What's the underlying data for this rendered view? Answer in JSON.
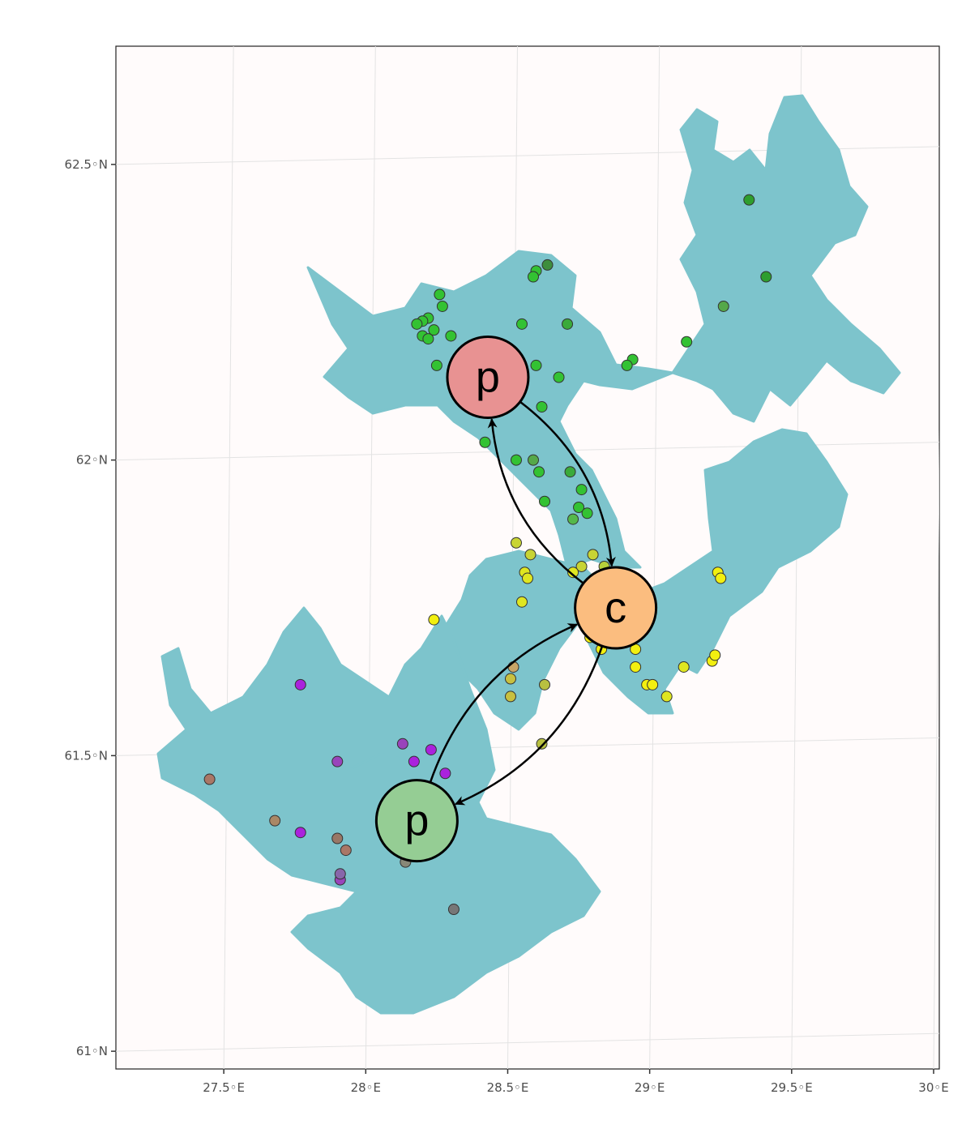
{
  "map": {
    "x_axis": {
      "range": [
        27.12,
        30.02
      ],
      "ticks": [
        {
          "value": 27.5,
          "label": "27.5◦E"
        },
        {
          "value": 28.0,
          "label": "28◦E"
        },
        {
          "value": 28.5,
          "label": "28.5◦E"
        },
        {
          "value": 29.0,
          "label": "29◦E"
        },
        {
          "value": 29.5,
          "label": "29.5◦E"
        },
        {
          "value": 30.0,
          "label": "30◦E"
        }
      ]
    },
    "y_axis": {
      "range": [
        60.97,
        62.7
      ],
      "ticks": [
        {
          "value": 62.5,
          "label": "62.5◦N"
        },
        {
          "value": 62.0,
          "label": "62◦N"
        },
        {
          "value": 61.5,
          "label": "61.5◦N"
        },
        {
          "value": 61.0,
          "label": "61◦N"
        }
      ]
    },
    "grid": true,
    "colors": {
      "water": "#7dc4cc",
      "panel": "#fffbfb",
      "grid": "#e3e3e3"
    },
    "nodes": [
      {
        "id": "north",
        "label": "p",
        "lon": 28.43,
        "lat": 62.14,
        "color": "#e89292"
      },
      {
        "id": "center",
        "label": "c",
        "lon": 28.88,
        "lat": 61.75,
        "color": "#fbbd7f"
      },
      {
        "id": "south",
        "label": "p",
        "lon": 28.18,
        "lat": 61.39,
        "color": "#95cd94"
      }
    ],
    "edges": [
      {
        "from": "north",
        "to": "center"
      },
      {
        "from": "center",
        "to": "north"
      },
      {
        "from": "south",
        "to": "center"
      },
      {
        "from": "center",
        "to": "south"
      }
    ],
    "sites": [
      {
        "lon": 29.35,
        "lat": 62.44,
        "color": "#2e9e2e"
      },
      {
        "lon": 29.41,
        "lat": 62.31,
        "color": "#2e9e2e"
      },
      {
        "lon": 29.26,
        "lat": 62.26,
        "color": "#55a84a"
      },
      {
        "lon": 29.13,
        "lat": 62.2,
        "color": "#33c233"
      },
      {
        "lon": 28.94,
        "lat": 62.17,
        "color": "#33c233"
      },
      {
        "lon": 28.92,
        "lat": 62.16,
        "color": "#33c233"
      },
      {
        "lon": 28.64,
        "lat": 62.33,
        "color": "#3e8e3e"
      },
      {
        "lon": 28.6,
        "lat": 62.32,
        "color": "#33c233"
      },
      {
        "lon": 28.59,
        "lat": 62.31,
        "color": "#33c233"
      },
      {
        "lon": 28.26,
        "lat": 62.28,
        "color": "#33c233"
      },
      {
        "lon": 28.27,
        "lat": 62.26,
        "color": "#33c233"
      },
      {
        "lon": 28.22,
        "lat": 62.24,
        "color": "#33c233"
      },
      {
        "lon": 28.2,
        "lat": 62.235,
        "color": "#33c233"
      },
      {
        "lon": 28.24,
        "lat": 62.22,
        "color": "#33c233"
      },
      {
        "lon": 28.18,
        "lat": 62.23,
        "color": "#33c233"
      },
      {
        "lon": 28.2,
        "lat": 62.21,
        "color": "#33c233"
      },
      {
        "lon": 28.22,
        "lat": 62.205,
        "color": "#33c233"
      },
      {
        "lon": 28.3,
        "lat": 62.21,
        "color": "#33c233"
      },
      {
        "lon": 28.25,
        "lat": 62.16,
        "color": "#33c233"
      },
      {
        "lon": 28.55,
        "lat": 62.23,
        "color": "#33c233"
      },
      {
        "lon": 28.71,
        "lat": 62.23,
        "color": "#3aaa3a"
      },
      {
        "lon": 28.6,
        "lat": 62.16,
        "color": "#33c233"
      },
      {
        "lon": 28.68,
        "lat": 62.14,
        "color": "#33c233"
      },
      {
        "lon": 28.62,
        "lat": 62.09,
        "color": "#33c233"
      },
      {
        "lon": 28.42,
        "lat": 62.03,
        "color": "#33c233"
      },
      {
        "lon": 28.53,
        "lat": 62.0,
        "color": "#33c233"
      },
      {
        "lon": 28.59,
        "lat": 62.0,
        "color": "#55a84a"
      },
      {
        "lon": 28.61,
        "lat": 61.98,
        "color": "#33c233"
      },
      {
        "lon": 28.72,
        "lat": 61.98,
        "color": "#3aaa3a"
      },
      {
        "lon": 28.76,
        "lat": 61.95,
        "color": "#33c233"
      },
      {
        "lon": 28.63,
        "lat": 61.93,
        "color": "#33c233"
      },
      {
        "lon": 28.75,
        "lat": 61.92,
        "color": "#33c233"
      },
      {
        "lon": 28.78,
        "lat": 61.91,
        "color": "#33c233"
      },
      {
        "lon": 28.73,
        "lat": 61.9,
        "color": "#55b84a"
      },
      {
        "lon": 28.53,
        "lat": 61.86,
        "color": "#c8d434"
      },
      {
        "lon": 28.58,
        "lat": 61.84,
        "color": "#c8d434"
      },
      {
        "lon": 28.56,
        "lat": 61.81,
        "color": "#dfe621"
      },
      {
        "lon": 28.57,
        "lat": 61.8,
        "color": "#dfe621"
      },
      {
        "lon": 28.8,
        "lat": 61.84,
        "color": "#c8d434"
      },
      {
        "lon": 28.76,
        "lat": 61.82,
        "color": "#c8d434"
      },
      {
        "lon": 28.73,
        "lat": 61.81,
        "color": "#dfe621"
      },
      {
        "lon": 28.84,
        "lat": 61.82,
        "color": "#b8d03a"
      },
      {
        "lon": 29.24,
        "lat": 61.81,
        "color": "#f2ef10"
      },
      {
        "lon": 29.25,
        "lat": 61.8,
        "color": "#f2ef10"
      },
      {
        "lon": 28.55,
        "lat": 61.76,
        "color": "#dfe621"
      },
      {
        "lon": 28.24,
        "lat": 61.73,
        "color": "#f2ef10"
      },
      {
        "lon": 28.79,
        "lat": 61.7,
        "color": "#f2ef10"
      },
      {
        "lon": 28.83,
        "lat": 61.68,
        "color": "#f2ef10"
      },
      {
        "lon": 28.95,
        "lat": 61.68,
        "color": "#f2ef10"
      },
      {
        "lon": 28.95,
        "lat": 61.65,
        "color": "#f2ef10"
      },
      {
        "lon": 29.12,
        "lat": 61.65,
        "color": "#dfe621"
      },
      {
        "lon": 29.22,
        "lat": 61.66,
        "color": "#f2ef10"
      },
      {
        "lon": 29.23,
        "lat": 61.67,
        "color": "#f2ef10"
      },
      {
        "lon": 28.99,
        "lat": 61.62,
        "color": "#f2ef10"
      },
      {
        "lon": 29.01,
        "lat": 61.62,
        "color": "#f2ef10"
      },
      {
        "lon": 29.06,
        "lat": 61.6,
        "color": "#dfe621"
      },
      {
        "lon": 28.52,
        "lat": 61.65,
        "color": "#c9a566"
      },
      {
        "lon": 28.51,
        "lat": 61.63,
        "color": "#c8c040"
      },
      {
        "lon": 28.63,
        "lat": 61.62,
        "color": "#b8c040"
      },
      {
        "lon": 28.51,
        "lat": 61.6,
        "color": "#c8c040"
      },
      {
        "lon": 28.62,
        "lat": 61.52,
        "color": "#b8c040"
      },
      {
        "lon": 27.77,
        "lat": 61.62,
        "color": "#aa22dd"
      },
      {
        "lon": 27.9,
        "lat": 61.49,
        "color": "#9944bb"
      },
      {
        "lon": 28.13,
        "lat": 61.52,
        "color": "#9944bb"
      },
      {
        "lon": 28.23,
        "lat": 61.51,
        "color": "#aa22dd"
      },
      {
        "lon": 28.17,
        "lat": 61.49,
        "color": "#aa22dd"
      },
      {
        "lon": 28.28,
        "lat": 61.47,
        "color": "#aa22dd"
      },
      {
        "lon": 27.77,
        "lat": 61.37,
        "color": "#aa22dd"
      },
      {
        "lon": 27.45,
        "lat": 61.46,
        "color": "#aa7766"
      },
      {
        "lon": 27.68,
        "lat": 61.39,
        "color": "#aa8866"
      },
      {
        "lon": 27.9,
        "lat": 61.36,
        "color": "#997766"
      },
      {
        "lon": 27.93,
        "lat": 61.34,
        "color": "#aa7766"
      },
      {
        "lon": 27.91,
        "lat": 61.29,
        "color": "#9944bb"
      },
      {
        "lon": 27.91,
        "lat": 61.3,
        "color": "#8866aa"
      },
      {
        "lon": 28.14,
        "lat": 61.32,
        "color": "#888877"
      },
      {
        "lon": 28.31,
        "lat": 61.24,
        "color": "#777777"
      }
    ]
  }
}
